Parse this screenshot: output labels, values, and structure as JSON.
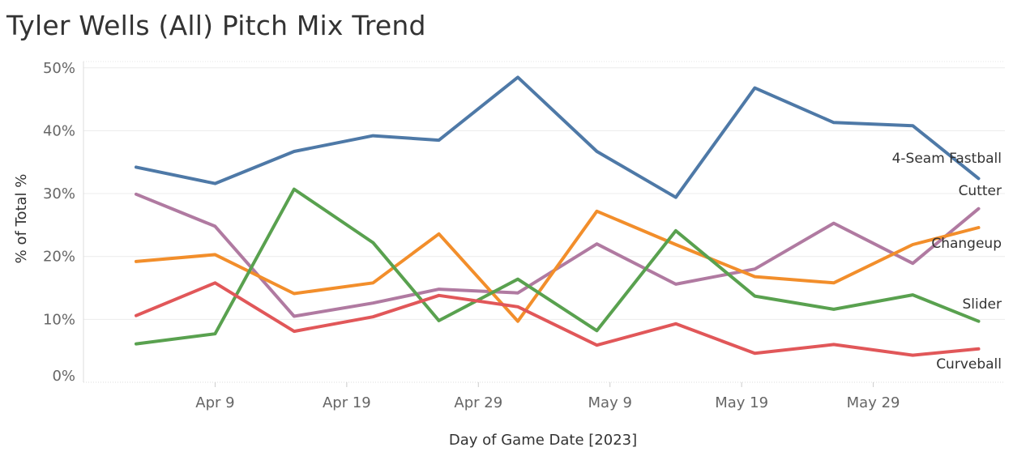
{
  "chart_data": {
    "type": "line",
    "title": "Tyler Wells (All) Pitch Mix Trend",
    "xlabel": "Day of Game Date [2023]",
    "ylabel": "% of Total %",
    "ylim": [
      0,
      51
    ],
    "xlim": [
      "2023-03-30",
      "2023-06-08"
    ],
    "yticks": [
      0,
      10,
      20,
      30,
      40,
      50
    ],
    "ytick_labels": [
      "0%",
      "10%",
      "20%",
      "30%",
      "40%",
      "50%"
    ],
    "xticks": [
      "2023-04-09",
      "2023-04-19",
      "2023-04-29",
      "2023-05-09",
      "2023-05-19",
      "2023-05-29"
    ],
    "xtick_labels": [
      "Apr 9",
      "Apr 19",
      "Apr 29",
      "May 9",
      "May 19",
      "May 29"
    ],
    "x": [
      "2023-04-03",
      "2023-04-09",
      "2023-04-15",
      "2023-04-21",
      "2023-04-26",
      "2023-05-02",
      "2023-05-08",
      "2023-05-14",
      "2023-05-20",
      "2023-05-26",
      "2023-06-01",
      "2023-06-06"
    ],
    "grid": true,
    "legend": "end-of-line labels",
    "series": [
      {
        "name": "4-Seam Fastball",
        "color": "#4e79a7",
        "values": [
          34.2,
          31.6,
          36.7,
          39.2,
          38.5,
          48.5,
          36.7,
          29.4,
          46.8,
          41.3,
          40.8,
          32.4
        ]
      },
      {
        "name": "Cutter",
        "color": "#b07aa1",
        "values": [
          29.9,
          24.8,
          10.5,
          12.6,
          14.8,
          14.2,
          22.0,
          15.6,
          18.0,
          25.3,
          18.9,
          27.6
        ]
      },
      {
        "name": "Changeup",
        "color": "#f28e2b",
        "values": [
          19.2,
          20.3,
          14.1,
          15.8,
          23.6,
          9.7,
          27.2,
          21.9,
          16.8,
          15.8,
          21.9,
          24.6
        ]
      },
      {
        "name": "Slider",
        "color": "#59a14f",
        "values": [
          6.1,
          7.7,
          30.7,
          22.2,
          9.8,
          16.4,
          8.2,
          24.1,
          13.7,
          11.6,
          13.9,
          9.7
        ]
      },
      {
        "name": "Curveball",
        "color": "#e15759",
        "values": [
          10.6,
          15.8,
          8.1,
          10.4,
          13.8,
          12.0,
          5.9,
          9.3,
          4.6,
          6.0,
          4.3,
          5.3
        ]
      }
    ]
  }
}
